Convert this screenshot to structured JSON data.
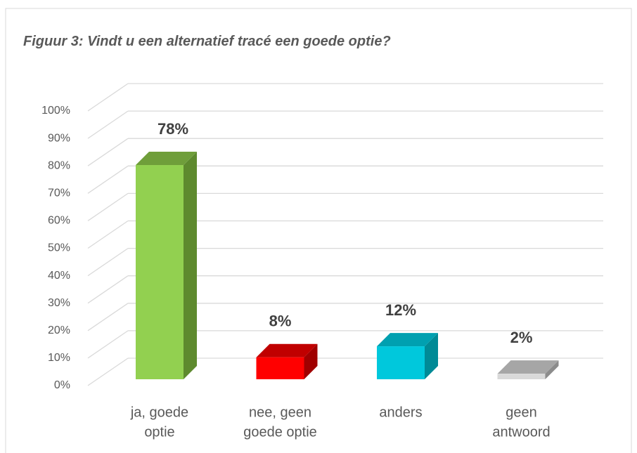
{
  "chart_data": {
    "type": "bar3d",
    "title": "Figuur 3: Vindt u een alternatief tracé een goede optie?",
    "categories": [
      [
        "ja, goede",
        "optie"
      ],
      [
        "nee, geen",
        "goede optie"
      ],
      [
        "anders"
      ],
      [
        "geen",
        "antwoord"
      ]
    ],
    "values": [
      78,
      8,
      12,
      2
    ],
    "value_labels": [
      "78%",
      "8%",
      "12%",
      "2%"
    ],
    "colors": [
      [
        "#92d050",
        "#6f9e3a",
        "#5e8a2e"
      ],
      [
        "#ff0000",
        "#c00000",
        "#a00000"
      ],
      [
        "#00c8dc",
        "#00a0b0",
        "#008a96"
      ],
      [
        "#d9d9d9",
        "#a6a6a6",
        "#8c8c8c"
      ]
    ],
    "ylim": [
      0,
      100
    ],
    "yticks": [
      {
        "value": 0,
        "label": "0%"
      },
      {
        "value": 10,
        "label": "10%"
      },
      {
        "value": 20,
        "label": "20%"
      },
      {
        "value": 30,
        "label": "30%"
      },
      {
        "value": 40,
        "label": "40%"
      },
      {
        "value": 50,
        "label": "50%"
      },
      {
        "value": 60,
        "label": "60%"
      },
      {
        "value": 70,
        "label": "70%"
      },
      {
        "value": 80,
        "label": "80%"
      },
      {
        "value": 90,
        "label": "90%"
      },
      {
        "value": 100,
        "label": "100%"
      }
    ],
    "grid": true
  }
}
